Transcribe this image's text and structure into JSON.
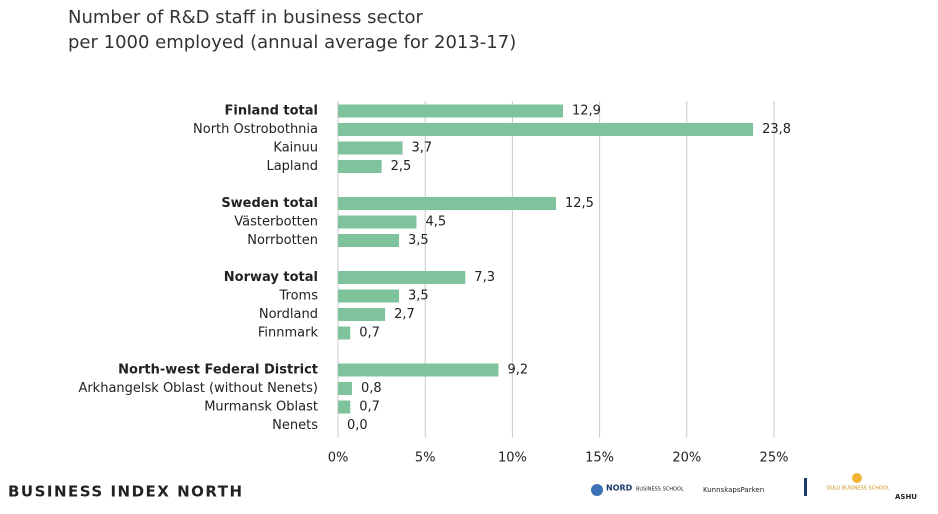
{
  "chart_data": {
    "type": "hbar",
    "title": [
      "Number of R&D staff in business sector",
      "per 1000 employed (annual average for 2013-17)"
    ],
    "categories": [
      "Finland total",
      "North Ostrobothnia",
      "Kainuu",
      "Lapland",
      null,
      "Sweden total",
      "Västerbotten",
      "Norrbotten",
      null,
      "Norway total",
      "Troms",
      "Nordland",
      "Finnmark",
      null,
      "North-west Federal District",
      "Arkhangelsk Oblast (without Nenets)",
      "Murmansk Oblast",
      "Nenets"
    ],
    "values": [
      12.9,
      23.8,
      3.7,
      2.5,
      null,
      12.5,
      4.5,
      3.5,
      null,
      7.3,
      3.5,
      2.7,
      0.7,
      null,
      9.2,
      0.8,
      0.7,
      0.0
    ],
    "value_labels": [
      "12,9",
      "23,8",
      "3,7",
      "2,5",
      null,
      "12,5",
      "4,5",
      "3,5",
      null,
      "7,3",
      "3,5",
      "2,7",
      "0,7",
      null,
      "9,2",
      "0,8",
      "0,7",
      "0,0"
    ],
    "bold_categories": [
      0,
      5,
      9,
      14
    ],
    "color": "#7fc39c",
    "xlim": [
      0,
      25
    ],
    "xticks": [
      {
        "value": 0,
        "label": "0%"
      },
      {
        "value": 5,
        "label": "5%"
      },
      {
        "value": 10,
        "label": "10%"
      },
      {
        "value": 15,
        "label": "15%"
      },
      {
        "value": 20,
        "label": "20%"
      },
      {
        "value": 25,
        "label": "25%"
      }
    ],
    "grid": true
  },
  "footer": {
    "brand": "BUSINESS INDEX NORTH",
    "logos": [
      "NORD",
      "BUSINESS SCHOOL",
      "KunnskapsParken",
      "OULU BUSINESS SCHOOL",
      "ASHU"
    ]
  }
}
